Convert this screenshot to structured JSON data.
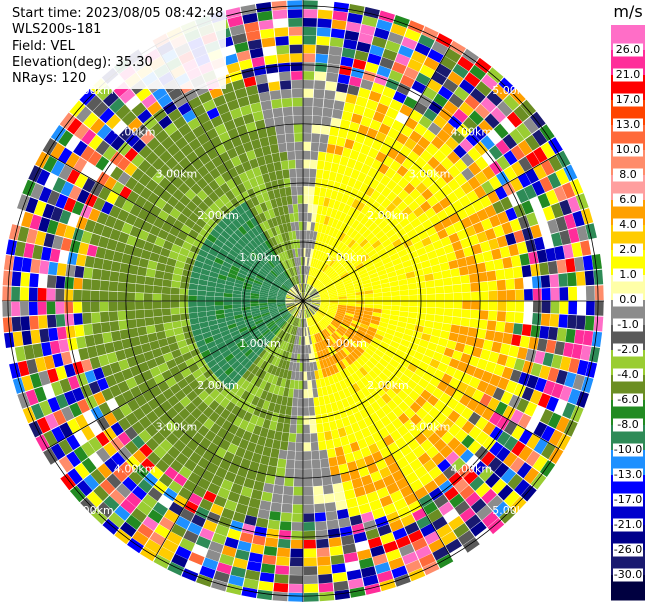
{
  "header": {
    "start_time": "Start time: 2023/08/05 08:42:48",
    "instrument": "WLS200s-181",
    "field": "Field: VEL",
    "elevation": "Elevation(deg): 35.30",
    "nrays": "NRays: 120"
  },
  "chart_data": {
    "type": "heatmap",
    "projection": "polar-ppi",
    "field": "VEL",
    "units": "m/s",
    "elevation_deg": 35.3,
    "n_rays": 120,
    "range_rings_km": [
      1.0,
      2.0,
      3.0,
      4.0,
      5.0
    ],
    "range_ring_labels": [
      "1.00km",
      "2.00km",
      "3.00km",
      "4.00km",
      "5.00km"
    ],
    "max_range_km": 5.1,
    "spoke_angles_deg": [
      0,
      30,
      60,
      90,
      120,
      150,
      180,
      210,
      240,
      270,
      300,
      330
    ],
    "colorbar": {
      "unit_label": "m/s",
      "tick_labels": [
        "26.0",
        "21.0",
        "17.0",
        "13.0",
        "10.0",
        "8.0",
        "6.0",
        "4.0",
        "2.0",
        "1.0",
        "0.0",
        "-1.0",
        "-2.0",
        "-4.0",
        "-6.0",
        "-8.0",
        "-10.0",
        "-13.0",
        "-17.0",
        "-21.0",
        "-26.0",
        "-30.0"
      ],
      "colors": [
        "#ff6ec7",
        "#ff2d9a",
        "#ff0000",
        "#ff4400",
        "#ff6a3a",
        "#ff8c6a",
        "#ff9f9f",
        "#ffa000",
        "#ffcc00",
        "#ffff00",
        "#ffffa8",
        "#8c8c8c",
        "#5a5a5a",
        "#9acd32",
        "#6b8e23",
        "#228b22",
        "#2e8b57",
        "#1e90ff",
        "#0000ff",
        "#0000cd",
        "#00008b",
        "#191970",
        "#000040"
      ]
    },
    "regions": [
      {
        "description": "near-zero",
        "value": 0.0,
        "range_km": [
          0.0,
          0.25
        ]
      },
      {
        "description": "east-positive",
        "value": 2.0,
        "az_center_deg": 90,
        "range_km": [
          0.25,
          2.9
        ]
      },
      {
        "description": "southeast-orange",
        "value": 4.0,
        "az_center_deg": 130,
        "range_km": [
          0.6,
          1.3
        ]
      },
      {
        "description": "west-negative",
        "value": -6.0,
        "az_center_deg": 275,
        "range_km": [
          0.25,
          2.0
        ]
      },
      {
        "description": "west-olive",
        "value": -4.0,
        "az_center_deg": 270,
        "range_km": [
          2.0,
          3.4
        ]
      },
      {
        "description": "noise",
        "value": null,
        "range_km": [
          3.4,
          5.1
        ]
      }
    ]
  }
}
